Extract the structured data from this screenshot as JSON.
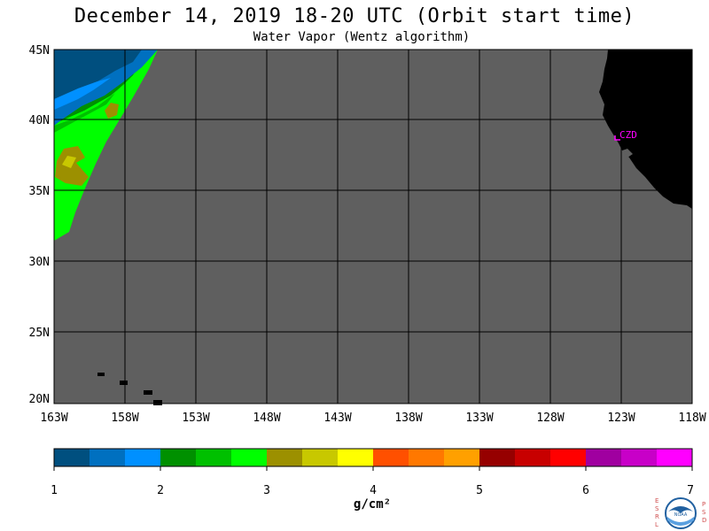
{
  "title": "December 14, 2019  18-20 UTC  (Orbit start time)",
  "subtitle": "Water Vapor (Wentz algorithm)",
  "lat_labels": [
    "45N",
    "40N",
    "35N",
    "30N",
    "25N",
    "20N"
  ],
  "lon_labels": [
    "163W",
    "158W",
    "153W",
    "148W",
    "143W",
    "138W",
    "133W",
    "128W",
    "123W",
    "118W"
  ],
  "station_label": "CZD",
  "colorbar": {
    "ticks": [
      "1",
      "2",
      "3",
      "4",
      "5",
      "6",
      "7"
    ],
    "unit": "g/cm²",
    "colors": [
      "#004f7f",
      "#0070c0",
      "#0090ff",
      "#009000",
      "#00c000",
      "#00ff00",
      "#9c9000",
      "#c8c800",
      "#ffff00",
      "#ff5000",
      "#ff7800",
      "#ffa000",
      "#960000",
      "#c80000",
      "#ff0000",
      "#a000a0",
      "#c800c8",
      "#ff00ff"
    ]
  },
  "colors": {
    "no_data": "#5f5f5f",
    "land": "#000000",
    "grid": "#000000",
    "station": "#ff00ff"
  },
  "logo_letters_left": [
    "E",
    "S",
    "R",
    "L"
  ],
  "logo_letters_right": [
    "P",
    "S",
    "D"
  ],
  "logo_text": "NOAA"
}
